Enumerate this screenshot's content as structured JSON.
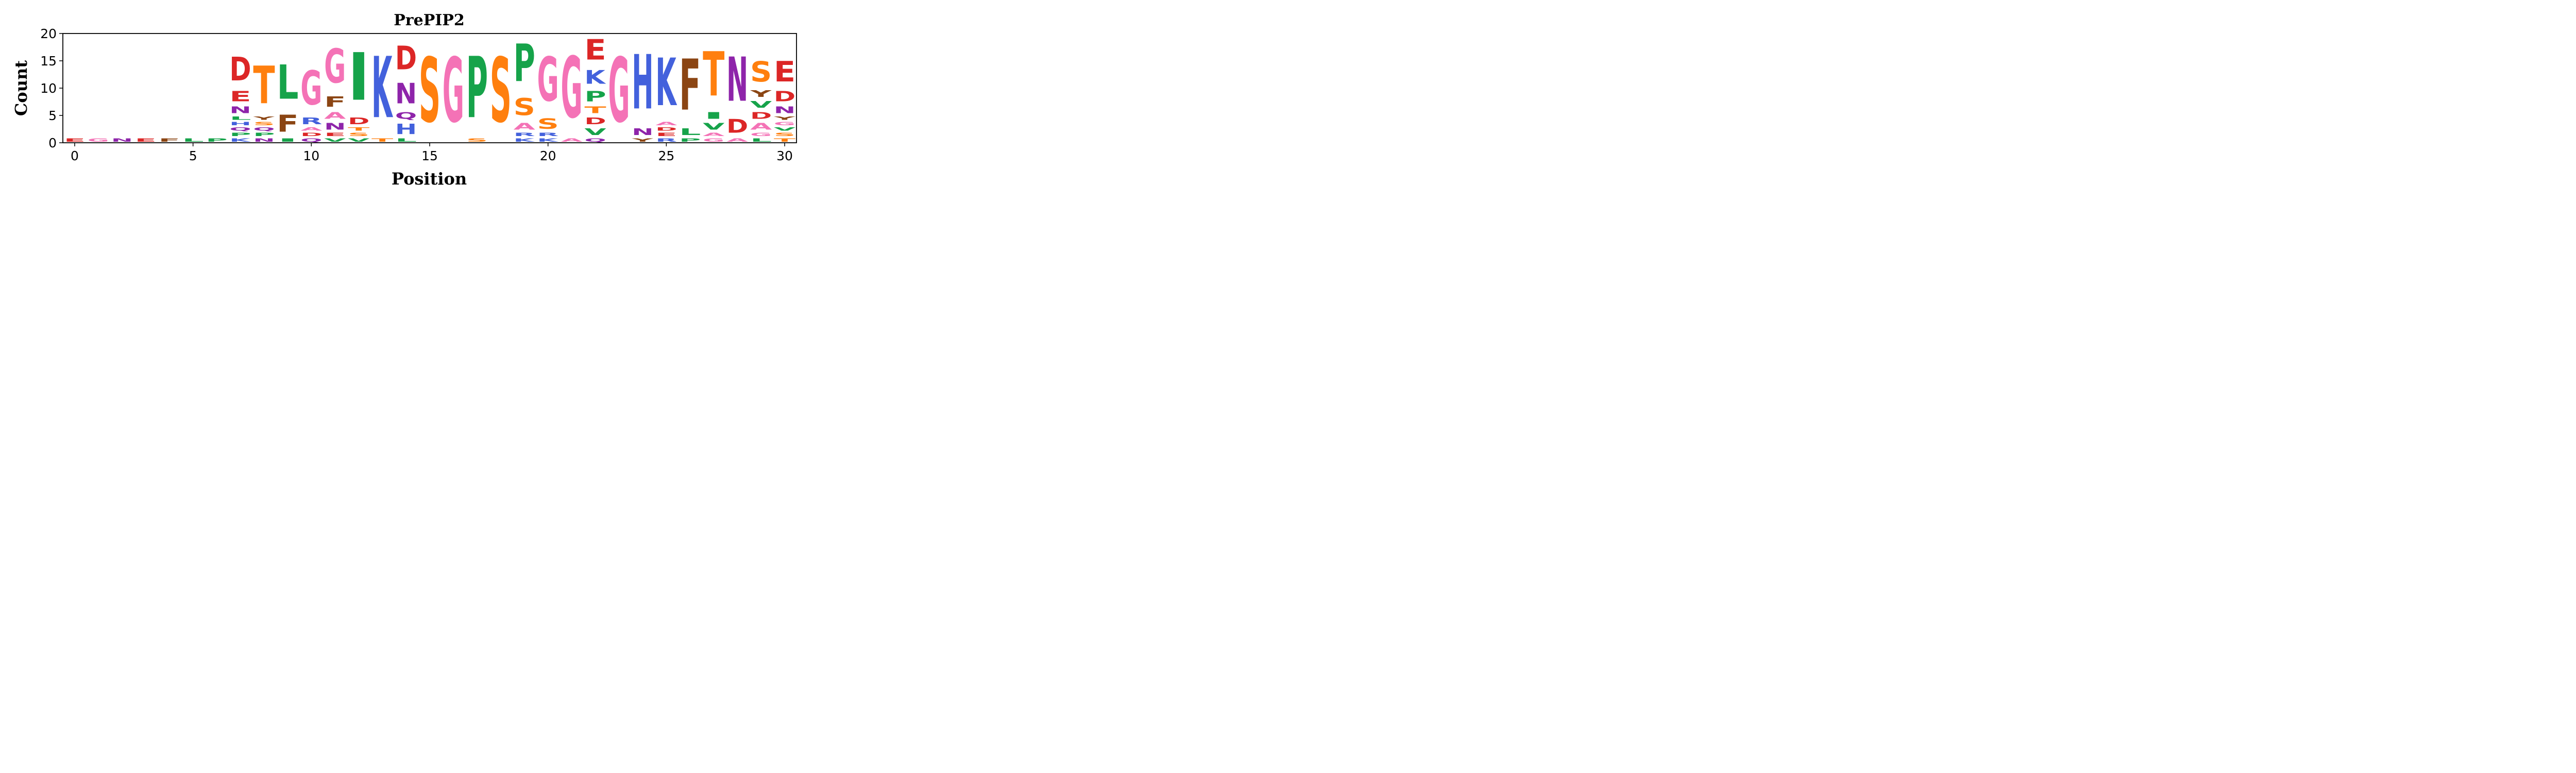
{
  "chart_data": {
    "type": "sequence-logo",
    "title": "PrePIP2",
    "xlabel": "Position",
    "ylabel": "Count",
    "xlim": [
      -0.5,
      30.5
    ],
    "ylim": [
      0,
      20
    ],
    "xticks": [
      0,
      5,
      10,
      15,
      20,
      25,
      30
    ],
    "yticks": [
      0,
      5,
      10,
      15,
      20
    ],
    "color_scheme": {
      "A": "#f472b6",
      "C": "#f472b6",
      "G": "#f472b6",
      "D": "#dc2626",
      "E": "#dc2626",
      "H": "#4361dc",
      "K": "#4361dc",
      "R": "#4361dc",
      "F": "#8b4513",
      "W": "#8b4513",
      "Y": "#8b4513",
      "I": "#16a34a",
      "L": "#16a34a",
      "P": "#16a34a",
      "V": "#16a34a",
      "M": "#16a34a",
      "N": "#8e24aa",
      "Q": "#8e24aa",
      "S": "#ff7f0e",
      "T": "#ff7f0e"
    },
    "positions": [
      {
        "pos": 0,
        "letters": [
          {
            "l": "E",
            "v": 1
          }
        ]
      },
      {
        "pos": 1,
        "letters": [
          {
            "l": "G",
            "v": 1
          }
        ]
      },
      {
        "pos": 2,
        "letters": [
          {
            "l": "N",
            "v": 1
          }
        ]
      },
      {
        "pos": 3,
        "letters": [
          {
            "l": "E",
            "v": 1
          }
        ]
      },
      {
        "pos": 4,
        "letters": [
          {
            "l": "F",
            "v": 1
          }
        ]
      },
      {
        "pos": 5,
        "letters": [
          {
            "l": "L",
            "v": 1
          }
        ]
      },
      {
        "pos": 6,
        "letters": [
          {
            "l": "P",
            "v": 1
          }
        ]
      },
      {
        "pos": 7,
        "letters": [
          {
            "l": "K",
            "v": 1
          },
          {
            "l": "P",
            "v": 1
          },
          {
            "l": "Q",
            "v": 1
          },
          {
            "l": "H",
            "v": 1
          },
          {
            "l": "L",
            "v": 1
          },
          {
            "l": "N",
            "v": 2
          },
          {
            "l": "E",
            "v": 3
          },
          {
            "l": "D",
            "v": 7
          }
        ]
      },
      {
        "pos": 8,
        "letters": [
          {
            "l": "N",
            "v": 1
          },
          {
            "l": "P",
            "v": 1
          },
          {
            "l": "Q",
            "v": 1
          },
          {
            "l": "S",
            "v": 1
          },
          {
            "l": "Y",
            "v": 1
          },
          {
            "l": "T",
            "v": 11
          }
        ]
      },
      {
        "pos": 9,
        "letters": [
          {
            "l": "I",
            "v": 1
          },
          {
            "l": "F",
            "v": 5
          },
          {
            "l": "L",
            "v": 10
          }
        ]
      },
      {
        "pos": 10,
        "letters": [
          {
            "l": "Q",
            "v": 1
          },
          {
            "l": "D",
            "v": 1
          },
          {
            "l": "A",
            "v": 1
          },
          {
            "l": "R",
            "v": 2
          },
          {
            "l": "G",
            "v": 10
          }
        ]
      },
      {
        "pos": 11,
        "letters": [
          {
            "l": "V",
            "v": 1
          },
          {
            "l": "E",
            "v": 1
          },
          {
            "l": "N",
            "v": 2
          },
          {
            "l": "A",
            "v": 2
          },
          {
            "l": "F",
            "v": 3
          },
          {
            "l": "G",
            "v": 10
          }
        ]
      },
      {
        "pos": 12,
        "letters": [
          {
            "l": "V",
            "v": 1
          },
          {
            "l": "S",
            "v": 1
          },
          {
            "l": "T",
            "v": 1
          },
          {
            "l": "D",
            "v": 2
          },
          {
            "l": "I",
            "v": 14
          }
        ]
      },
      {
        "pos": 13,
        "letters": [
          {
            "l": "T",
            "v": 1
          },
          {
            "l": "K",
            "v": 18
          }
        ]
      },
      {
        "pos": 14,
        "letters": [
          {
            "l": "L",
            "v": 1
          },
          {
            "l": "H",
            "v": 3
          },
          {
            "l": "Q",
            "v": 2
          },
          {
            "l": "N",
            "v": 6
          },
          {
            "l": "D",
            "v": 7
          }
        ]
      },
      {
        "pos": 15,
        "letters": [
          {
            "l": "S",
            "v": 19
          }
        ]
      },
      {
        "pos": 16,
        "letters": [
          {
            "l": "G",
            "v": 19
          }
        ]
      },
      {
        "pos": 17,
        "letters": [
          {
            "l": "S",
            "v": 1
          },
          {
            "l": "P",
            "v": 18
          }
        ]
      },
      {
        "pos": 18,
        "letters": [
          {
            "l": "S",
            "v": 19
          }
        ]
      },
      {
        "pos": 19,
        "letters": [
          {
            "l": "K",
            "v": 1
          },
          {
            "l": "R",
            "v": 1
          },
          {
            "l": "A",
            "v": 2
          },
          {
            "l": "S",
            "v": 5
          },
          {
            "l": "P",
            "v": 11
          }
        ]
      },
      {
        "pos": 20,
        "letters": [
          {
            "l": "K",
            "v": 1
          },
          {
            "l": "R",
            "v": 1
          },
          {
            "l": "S",
            "v": 3
          },
          {
            "l": "G",
            "v": 13
          }
        ]
      },
      {
        "pos": 21,
        "letters": [
          {
            "l": "A",
            "v": 1
          },
          {
            "l": "G",
            "v": 18
          }
        ]
      },
      {
        "pos": 22,
        "letters": [
          {
            "l": "Q",
            "v": 1
          },
          {
            "l": "V",
            "v": 2
          },
          {
            "l": "D",
            "v": 2
          },
          {
            "l": "T",
            "v": 2
          },
          {
            "l": "P",
            "v": 3
          },
          {
            "l": "K",
            "v": 4
          },
          {
            "l": "E",
            "v": 6
          }
        ]
      },
      {
        "pos": 23,
        "letters": [
          {
            "l": "G",
            "v": 19
          }
        ]
      },
      {
        "pos": 24,
        "letters": [
          {
            "l": "Y",
            "v": 1
          },
          {
            "l": "N",
            "v": 2
          },
          {
            "l": "H",
            "v": 16
          }
        ]
      },
      {
        "pos": 25,
        "letters": [
          {
            "l": "R",
            "v": 1
          },
          {
            "l": "E",
            "v": 1
          },
          {
            "l": "D",
            "v": 1
          },
          {
            "l": "A",
            "v": 1
          },
          {
            "l": "K",
            "v": 14
          }
        ]
      },
      {
        "pos": 26,
        "letters": [
          {
            "l": "P",
            "v": 1
          },
          {
            "l": "L",
            "v": 2
          },
          {
            "l": "F",
            "v": 15
          }
        ]
      },
      {
        "pos": 27,
        "letters": [
          {
            "l": "G",
            "v": 1
          },
          {
            "l": "A",
            "v": 1
          },
          {
            "l": "V",
            "v": 2
          },
          {
            "l": "I",
            "v": 2
          },
          {
            "l": "T",
            "v": 13
          }
        ]
      },
      {
        "pos": 28,
        "letters": [
          {
            "l": "A",
            "v": 1
          },
          {
            "l": "D",
            "v": 4
          },
          {
            "l": "N",
            "v": 13
          }
        ]
      },
      {
        "pos": 29,
        "letters": [
          {
            "l": "L",
            "v": 1
          },
          {
            "l": "G",
            "v": 1
          },
          {
            "l": "A",
            "v": 2
          },
          {
            "l": "D",
            "v": 2
          },
          {
            "l": "V",
            "v": 2
          },
          {
            "l": "Y",
            "v": 2
          },
          {
            "l": "S",
            "v": 6
          }
        ]
      },
      {
        "pos": 30,
        "letters": [
          {
            "l": "T",
            "v": 1
          },
          {
            "l": "S",
            "v": 1
          },
          {
            "l": "V",
            "v": 1
          },
          {
            "l": "G",
            "v": 1
          },
          {
            "l": "Y",
            "v": 1
          },
          {
            "l": "N",
            "v": 2
          },
          {
            "l": "D",
            "v": 3
          },
          {
            "l": "E",
            "v": 6
          }
        ]
      }
    ]
  }
}
